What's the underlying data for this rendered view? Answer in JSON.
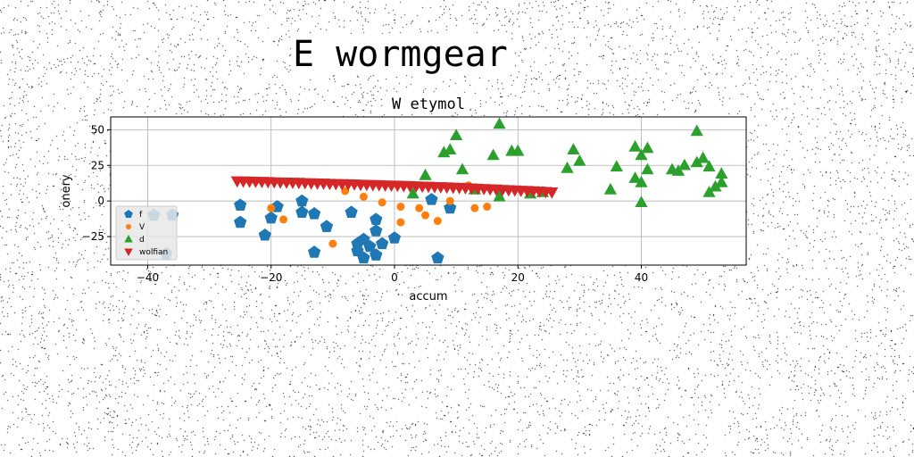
{
  "suptitle": "E wormgear",
  "chart_data": {
    "type": "scatter",
    "title": "W etymol",
    "xlabel": "accum",
    "ylabel": "onery",
    "xlim": [
      -46,
      57
    ],
    "ylim": [
      -45,
      59
    ],
    "xticks": [
      -40,
      -20,
      0,
      20,
      40
    ],
    "yticks": [
      -25,
      0,
      25,
      50
    ],
    "grid": true,
    "legend_position": "lower-left",
    "series": [
      {
        "name": "f",
        "marker": "pentagon",
        "color": "#1f77b4",
        "points": [
          [
            -39,
            -10
          ],
          [
            -36,
            -10
          ],
          [
            -37,
            -37
          ],
          [
            -25,
            -3
          ],
          [
            -25,
            -15
          ],
          [
            -21,
            -24
          ],
          [
            -20,
            -12
          ],
          [
            -19,
            -4
          ],
          [
            -15,
            0
          ],
          [
            -15,
            -8
          ],
          [
            -13,
            -9
          ],
          [
            -11,
            -18
          ],
          [
            -13,
            -36
          ],
          [
            -7,
            -8
          ],
          [
            -6,
            -30
          ],
          [
            -5,
            -27
          ],
          [
            -6,
            -35
          ],
          [
            -5,
            -40
          ],
          [
            -4,
            -32
          ],
          [
            -3,
            -38
          ],
          [
            -3,
            -21
          ],
          [
            -3,
            -13
          ],
          [
            -2,
            -30
          ],
          [
            0,
            -26
          ],
          [
            6,
            1
          ],
          [
            9,
            -5
          ],
          [
            7,
            -40
          ]
        ]
      },
      {
        "name": "V",
        "marker": "circle",
        "color": "#ff7f0e",
        "points": [
          [
            -18,
            -13
          ],
          [
            -20,
            -5
          ],
          [
            -8,
            7
          ],
          [
            -5,
            3
          ],
          [
            -10,
            -30
          ],
          [
            -2,
            -1
          ],
          [
            1,
            -4
          ],
          [
            1,
            -15
          ],
          [
            4,
            -5
          ],
          [
            5,
            -10
          ],
          [
            7,
            -14
          ],
          [
            9,
            0
          ],
          [
            12,
            11
          ],
          [
            13,
            -5
          ],
          [
            15,
            -4
          ]
        ]
      },
      {
        "name": "d",
        "marker": "triangle-up",
        "color": "#2ca02c",
        "points": [
          [
            3,
            5
          ],
          [
            5,
            18
          ],
          [
            8,
            34
          ],
          [
            9,
            36
          ],
          [
            10,
            46
          ],
          [
            11,
            22
          ],
          [
            13,
            8
          ],
          [
            16,
            32
          ],
          [
            17,
            54
          ],
          [
            19,
            35
          ],
          [
            20,
            35
          ],
          [
            17,
            3
          ],
          [
            22,
            5
          ],
          [
            24,
            6
          ],
          [
            28,
            23
          ],
          [
            29,
            36
          ],
          [
            30,
            28
          ],
          [
            35,
            8
          ],
          [
            36,
            24
          ],
          [
            39,
            38
          ],
          [
            39,
            16
          ],
          [
            40,
            13
          ],
          [
            40,
            32
          ],
          [
            41,
            37
          ],
          [
            41,
            22
          ],
          [
            40,
            -1
          ],
          [
            45,
            22
          ],
          [
            46,
            21
          ],
          [
            47,
            25
          ],
          [
            49,
            49
          ],
          [
            49,
            27
          ],
          [
            50,
            30
          ],
          [
            51,
            24
          ],
          [
            51,
            6
          ],
          [
            52,
            10
          ],
          [
            53,
            19
          ],
          [
            53,
            13
          ]
        ]
      },
      {
        "name": "wolfian",
        "marker": "triangle-down",
        "color": "#d62728",
        "points": [
          [
            -25.5,
            14
          ],
          [
            -24.5,
            13.9
          ],
          [
            -23.5,
            13.8
          ],
          [
            -22.5,
            13.7
          ],
          [
            -21.5,
            13.6
          ],
          [
            -20.5,
            13.5
          ],
          [
            -19.5,
            13.3
          ],
          [
            -18.5,
            13.2
          ],
          [
            -17.5,
            13.1
          ],
          [
            -16.5,
            13
          ],
          [
            -15.5,
            12.9
          ],
          [
            -14.5,
            12.7
          ],
          [
            -13.5,
            12.6
          ],
          [
            -12.5,
            12.5
          ],
          [
            -11.5,
            12.4
          ],
          [
            -10.5,
            12.2
          ],
          [
            -9.5,
            12.1
          ],
          [
            -8.5,
            12
          ],
          [
            -7.5,
            11.9
          ],
          [
            -6.5,
            11.8
          ],
          [
            -5.5,
            11.6
          ],
          [
            -4.5,
            11.5
          ],
          [
            -3.5,
            11.4
          ],
          [
            -2.5,
            11.3
          ],
          [
            -1.5,
            11.1
          ],
          [
            -0.5,
            11
          ],
          [
            0.5,
            10.9
          ],
          [
            1.5,
            10.7
          ],
          [
            2.5,
            10.6
          ],
          [
            3.5,
            10.5
          ],
          [
            4.5,
            10.3
          ],
          [
            5.5,
            10.2
          ],
          [
            6.5,
            10
          ],
          [
            7.5,
            9.9
          ],
          [
            8.5,
            9.7
          ],
          [
            9.5,
            9.5
          ],
          [
            10.5,
            9.4
          ],
          [
            11.5,
            9.2
          ],
          [
            12.5,
            9
          ],
          [
            13.5,
            8.8
          ],
          [
            14.5,
            8.6
          ],
          [
            15.5,
            8.4
          ],
          [
            16.5,
            8.2
          ],
          [
            17.5,
            8
          ],
          [
            18.5,
            7.8
          ],
          [
            19.5,
            7.6
          ],
          [
            20.5,
            7.4
          ],
          [
            21.5,
            7.2
          ],
          [
            22.5,
            7
          ],
          [
            23.5,
            6.8
          ],
          [
            24.5,
            6.5
          ],
          [
            25.5,
            6.2
          ]
        ]
      }
    ]
  }
}
